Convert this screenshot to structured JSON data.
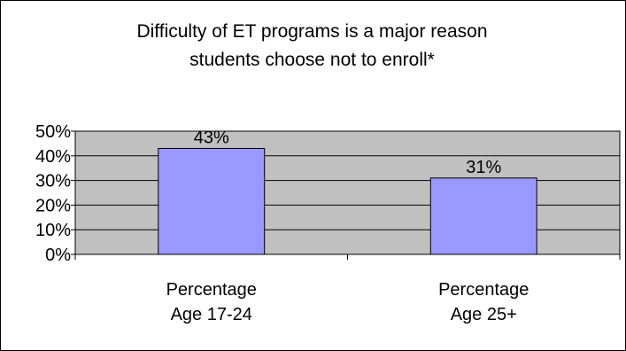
{
  "chart_data": {
    "type": "bar",
    "title": [
      "Difficulty of ET programs is a major reason",
      "students choose not to enroll*"
    ],
    "categories": [
      [
        "Percentage",
        "Age 17-24"
      ],
      [
        "Percentage",
        "Age 25+"
      ]
    ],
    "values": [
      43,
      31
    ],
    "data_labels": [
      "43%",
      "31%"
    ],
    "yticks": [
      "0%",
      "10%",
      "20%",
      "30%",
      "40%",
      "50%"
    ],
    "ylim": [
      0,
      50
    ],
    "grid": true,
    "legend": "none",
    "colors": {
      "plot_bg": "#c0c0c0",
      "bar_fill": "#9999ff",
      "outline": "#000000"
    }
  }
}
